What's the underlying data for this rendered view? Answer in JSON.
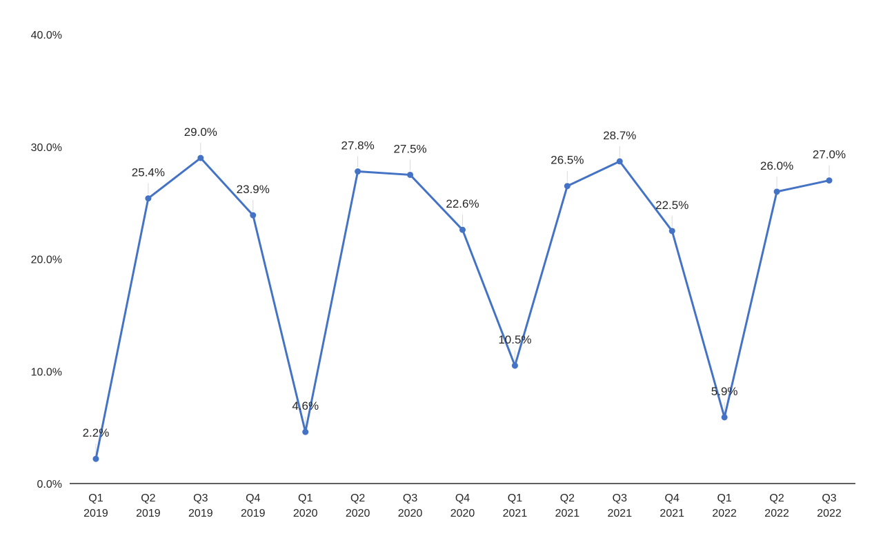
{
  "chart_data": {
    "type": "line",
    "title": "",
    "xlabel": "",
    "ylabel": "",
    "ylim": [
      0,
      40
    ],
    "y_tick_values": [
      0,
      10,
      20,
      30,
      40
    ],
    "y_tick_labels": [
      "0.0%",
      "10.0%",
      "20.0%",
      "30.0%",
      "40.0%"
    ],
    "grid": false,
    "legend": "none",
    "categories": [
      {
        "quarter": "Q1",
        "year": "2019"
      },
      {
        "quarter": "Q2",
        "year": "2019"
      },
      {
        "quarter": "Q3",
        "year": "2019"
      },
      {
        "quarter": "Q4",
        "year": "2019"
      },
      {
        "quarter": "Q1",
        "year": "2020"
      },
      {
        "quarter": "Q2",
        "year": "2020"
      },
      {
        "quarter": "Q3",
        "year": "2020"
      },
      {
        "quarter": "Q4",
        "year": "2020"
      },
      {
        "quarter": "Q1",
        "year": "2021"
      },
      {
        "quarter": "Q2",
        "year": "2021"
      },
      {
        "quarter": "Q3",
        "year": "2021"
      },
      {
        "quarter": "Q4",
        "year": "2021"
      },
      {
        "quarter": "Q1",
        "year": "2022"
      },
      {
        "quarter": "Q2",
        "year": "2022"
      },
      {
        "quarter": "Q3",
        "year": "2022"
      }
    ],
    "series": [
      {
        "color": "#4472C4",
        "values": [
          2.2,
          25.4,
          29.0,
          23.9,
          4.6,
          27.8,
          27.5,
          22.6,
          10.5,
          26.5,
          28.7,
          22.5,
          5.9,
          26.0,
          27.0
        ],
        "data_labels": [
          "2.2%",
          "25.4%",
          "29.0%",
          "23.9%",
          "4.6%",
          "27.8%",
          "27.5%",
          "22.6%",
          "10.5%",
          "26.5%",
          "28.7%",
          "22.5%",
          "5.9%",
          "26.0%",
          "27.0%"
        ]
      }
    ]
  }
}
